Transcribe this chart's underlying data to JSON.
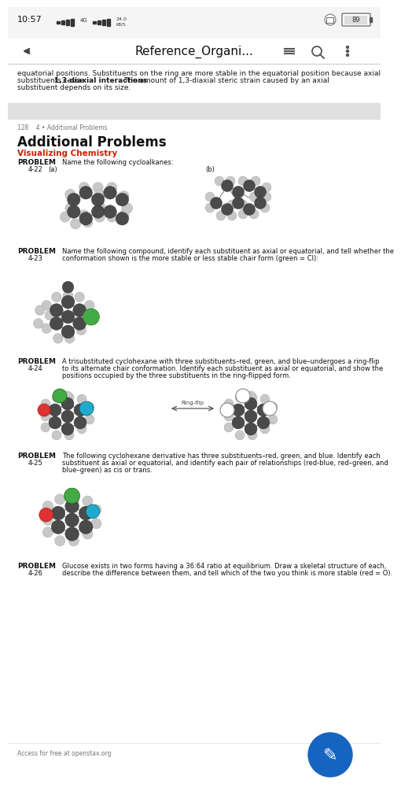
{
  "bg_color": "#ffffff",
  "status_time": "10:57",
  "status_signal": "4G",
  "status_kb": "24.0\nKB/S",
  "status_battery": "89",
  "nav_title": "Reference_Organi...",
  "top_text_line1": "equatorial positions. Substituents on the ring are more stable in the equatorial position because axial",
  "top_text_line2a": "substituents cause ",
  "top_text_line2b": "1,3-diaxial interactions",
  "top_text_line2c": ". The amount of 1,3-diaxial steric strain caused by an axial",
  "top_text_line3": "substituent depends on its size.",
  "page_info": "128    4 • Additional Problems",
  "section_title": "Additional Problems",
  "section_subtitle": "Visualizing Chemistry",
  "subtitle_color": "#cc2200",
  "footer_text": "Access for free at openstax.org",
  "fab_color": "#1565c0",
  "atom_dark": "#4a4a4a",
  "atom_light": "#c8c8c8",
  "atom_green": "#44aa44",
  "atom_red": "#dd3333",
  "atom_blue": "#2288cc",
  "atom_teal": "#22aacc",
  "bond_color": "#888888",
  "divider_color": "#e8e8e8",
  "text_color": "#111111",
  "gray_text": "#666666",
  "label_fs": 6.5,
  "body_fs": 6.0,
  "prob4_22_text": "Name the following cycloalkanes:",
  "prob4_23_text1": "Name the following compound, identify each substituent as axial or equatorial, and tell whether the",
  "prob4_23_text2": "conformation shown is the more stable or less stable chair form (green = Cl):",
  "prob4_24_text1": "A trisubstituted cyclohexane with three substituents–red, green, and blue–undergoes a ring-flip",
  "prob4_24_text2": "to its alternate chair conformation. Identify each substituent as axial or equatorial, and show the",
  "prob4_24_text3": "positions occupied by the three substituents in the ring-flipped form.",
  "prob4_25_text1": "The following cyclohexane derivative has three substituents–red, green, and blue. Identify each",
  "prob4_25_text2": "substituent as axial or equatorial, and identify each pair of relationships (red-blue, red–green, and",
  "prob4_25_text3": "blue–green) as cis or trans.",
  "prob4_26_text1": "Glucose exists in two forms having a 36:64 ratio at equilibrium. Draw a skeletal structure of each,",
  "prob4_26_text2": "describe the difference between them, and tell which of the two you think is more stable (red = O)."
}
